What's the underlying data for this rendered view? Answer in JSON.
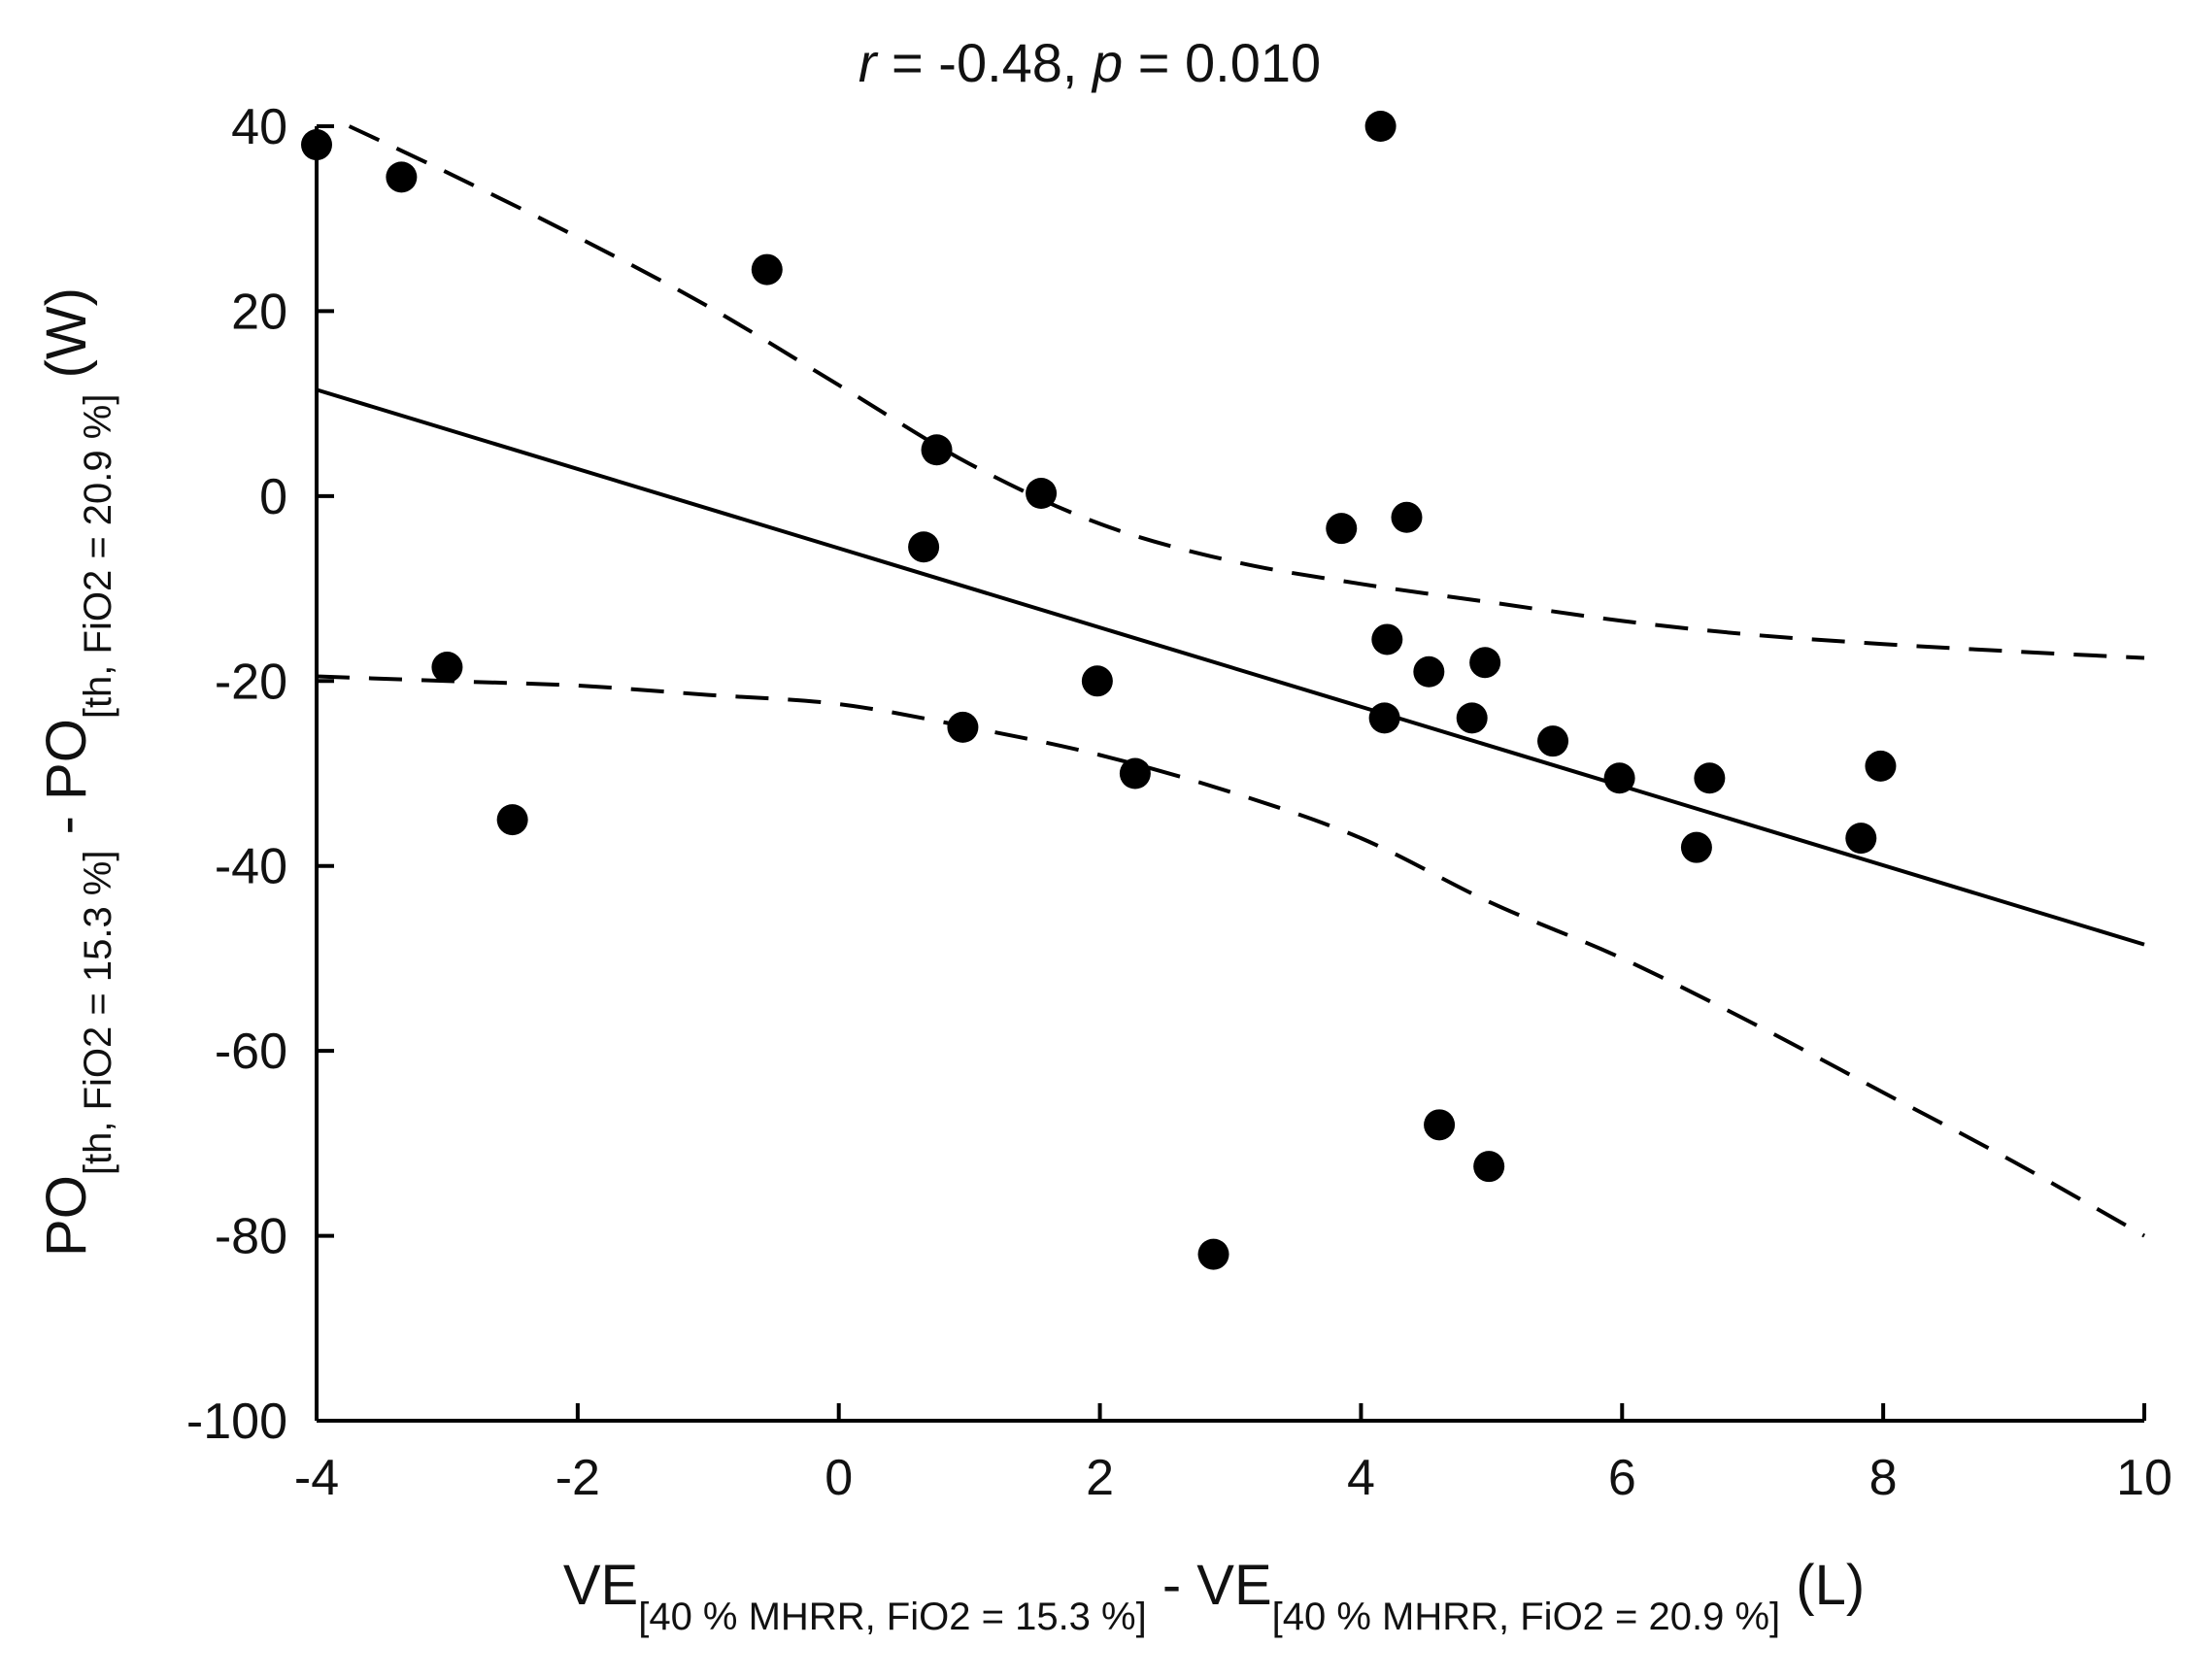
{
  "chart_data": {
    "type": "scatter",
    "title": {
      "r_symbol": "r",
      "r_text": " = -0.48, ",
      "p_symbol": "p",
      "p_text": " = 0.010"
    },
    "xlabel": {
      "part1": "VE",
      "sub1": "[40 % MHRR, FiO2 = 15.3 %]",
      "part2": " - VE",
      "sub2": "[40 % MHRR, FiO2 = 20.9 %]",
      "unit": " (L)"
    },
    "ylabel": {
      "part1": "PO",
      "sub1": "[th, FiO2 = 15.3 %]",
      "part2": " - PO",
      "sub2": "[th, FiO2 = 20.9 %]",
      "unit": " (W)"
    },
    "xlim": [
      -4,
      10
    ],
    "ylim": [
      -100,
      40
    ],
    "xticks": [
      -4,
      -2,
      0,
      2,
      4,
      6,
      8,
      10
    ],
    "yticks": [
      -100,
      -80,
      -60,
      -40,
      -20,
      0,
      20,
      40
    ],
    "grid": false,
    "points": [
      {
        "x": -4.0,
        "y": 38
      },
      {
        "x": -3.35,
        "y": 34.5
      },
      {
        "x": -3.0,
        "y": -18.5
      },
      {
        "x": -2.5,
        "y": -35
      },
      {
        "x": -0.55,
        "y": 24.5
      },
      {
        "x": 0.65,
        "y": -5.5
      },
      {
        "x": 0.75,
        "y": 5
      },
      {
        "x": 0.95,
        "y": -25
      },
      {
        "x": 1.55,
        "y": 0.3
      },
      {
        "x": 1.98,
        "y": -20
      },
      {
        "x": 2.27,
        "y": -30
      },
      {
        "x": 2.87,
        "y": -82
      },
      {
        "x": 3.85,
        "y": -3.5
      },
      {
        "x": 4.15,
        "y": 40
      },
      {
        "x": 4.18,
        "y": -24
      },
      {
        "x": 4.2,
        "y": -15.5
      },
      {
        "x": 4.35,
        "y": -2.3
      },
      {
        "x": 4.52,
        "y": -19
      },
      {
        "x": 4.6,
        "y": -68
      },
      {
        "x": 4.85,
        "y": -24
      },
      {
        "x": 4.95,
        "y": -18
      },
      {
        "x": 4.98,
        "y": -72.5
      },
      {
        "x": 5.47,
        "y": -26.5
      },
      {
        "x": 5.98,
        "y": -30.5
      },
      {
        "x": 6.57,
        "y": -38
      },
      {
        "x": 6.67,
        "y": -30.5
      },
      {
        "x": 7.83,
        "y": -37
      },
      {
        "x": 7.98,
        "y": -29.2
      }
    ],
    "fit_line": [
      [
        -4,
        11.5
      ],
      [
        10,
        -48.5
      ]
    ],
    "ci_upper": [
      [
        -3.75,
        40
      ],
      [
        -3.0,
        35
      ],
      [
        -2.0,
        28
      ],
      [
        -1.0,
        20.5
      ],
      [
        0.0,
        12
      ],
      [
        1.0,
        3.5
      ],
      [
        2.0,
        -3
      ],
      [
        3.0,
        -7
      ],
      [
        4.0,
        -9.5
      ],
      [
        5.0,
        -11.5
      ],
      [
        6.0,
        -13.5
      ],
      [
        7.0,
        -15
      ],
      [
        8.0,
        -16
      ],
      [
        9.0,
        -16.8
      ],
      [
        10.0,
        -17.5
      ]
    ],
    "ci_lower": [
      [
        -4.0,
        -19.5
      ],
      [
        -3.0,
        -20
      ],
      [
        -2.0,
        -20.5
      ],
      [
        -1.0,
        -21.5
      ],
      [
        0.0,
        -22.5
      ],
      [
        1.0,
        -25
      ],
      [
        2.0,
        -28
      ],
      [
        3.0,
        -32
      ],
      [
        4.0,
        -37
      ],
      [
        5.0,
        -44
      ],
      [
        6.0,
        -50
      ],
      [
        7.0,
        -57
      ],
      [
        8.0,
        -64.5
      ],
      [
        9.0,
        -72
      ],
      [
        10.0,
        -80
      ]
    ]
  }
}
